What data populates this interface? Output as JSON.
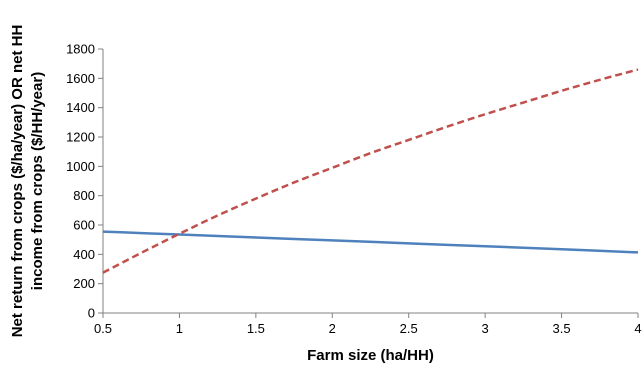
{
  "chart_data": {
    "type": "line",
    "title": "",
    "xlabel": "Farm size (ha/HH)",
    "ylabel_lines": [
      "Net return from crops ($/ha/year) OR net HH",
      "income from crops ($/HH/year)"
    ],
    "xlim": [
      0.5,
      4
    ],
    "ylim": [
      0,
      1800
    ],
    "x_ticks": [
      "0.5",
      "1",
      "1.5",
      "2",
      "2.5",
      "3",
      "3.5",
      "4"
    ],
    "y_ticks": [
      "0",
      "200",
      "400",
      "600",
      "800",
      "1000",
      "1200",
      "1400",
      "1600",
      "1800"
    ],
    "grid": false,
    "series": [
      {
        "color": "#4f81bd",
        "dash": "solid",
        "x": [
          0.5,
          1,
          1.5,
          2,
          2.5,
          3,
          3.5,
          4
        ],
        "values": [
          555,
          535,
          515,
          495,
          475,
          455,
          435,
          413
        ]
      },
      {
        "color": "#c0504d",
        "dash": "dashed",
        "x": [
          0.5,
          0.75,
          1,
          1.25,
          1.5,
          1.75,
          2,
          2.25,
          2.5,
          2.75,
          3,
          3.25,
          3.5,
          3.75,
          4
        ],
        "values": [
          275,
          410,
          540,
          665,
          780,
          890,
          990,
          1090,
          1180,
          1270,
          1355,
          1435,
          1515,
          1590,
          1660
        ]
      }
    ]
  }
}
